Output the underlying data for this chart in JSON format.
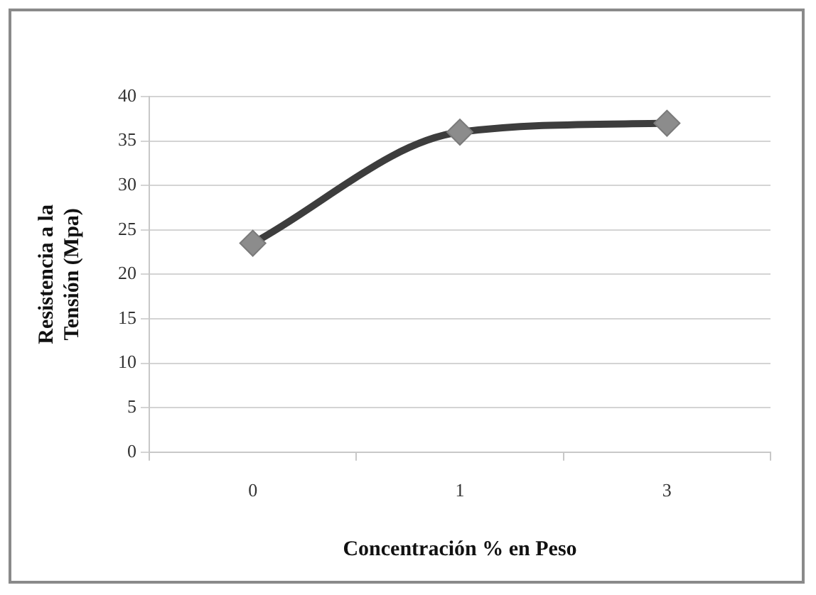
{
  "chart_data": {
    "type": "line",
    "xlabel": "Concentración % en Peso",
    "ylabel": "Resistencia a la\nTensión (Mpa)",
    "categories": [
      "0",
      "1",
      "3"
    ],
    "series": [
      {
        "color": "#3d3d3d",
        "values": [
          23.5,
          36,
          37
        ]
      }
    ],
    "ylim": [
      0,
      40
    ],
    "yticks": [
      0,
      5,
      10,
      15,
      20,
      25,
      30,
      35,
      40
    ],
    "grid": "y",
    "legend": false,
    "marker": "diamond",
    "line_style": "solid"
  }
}
